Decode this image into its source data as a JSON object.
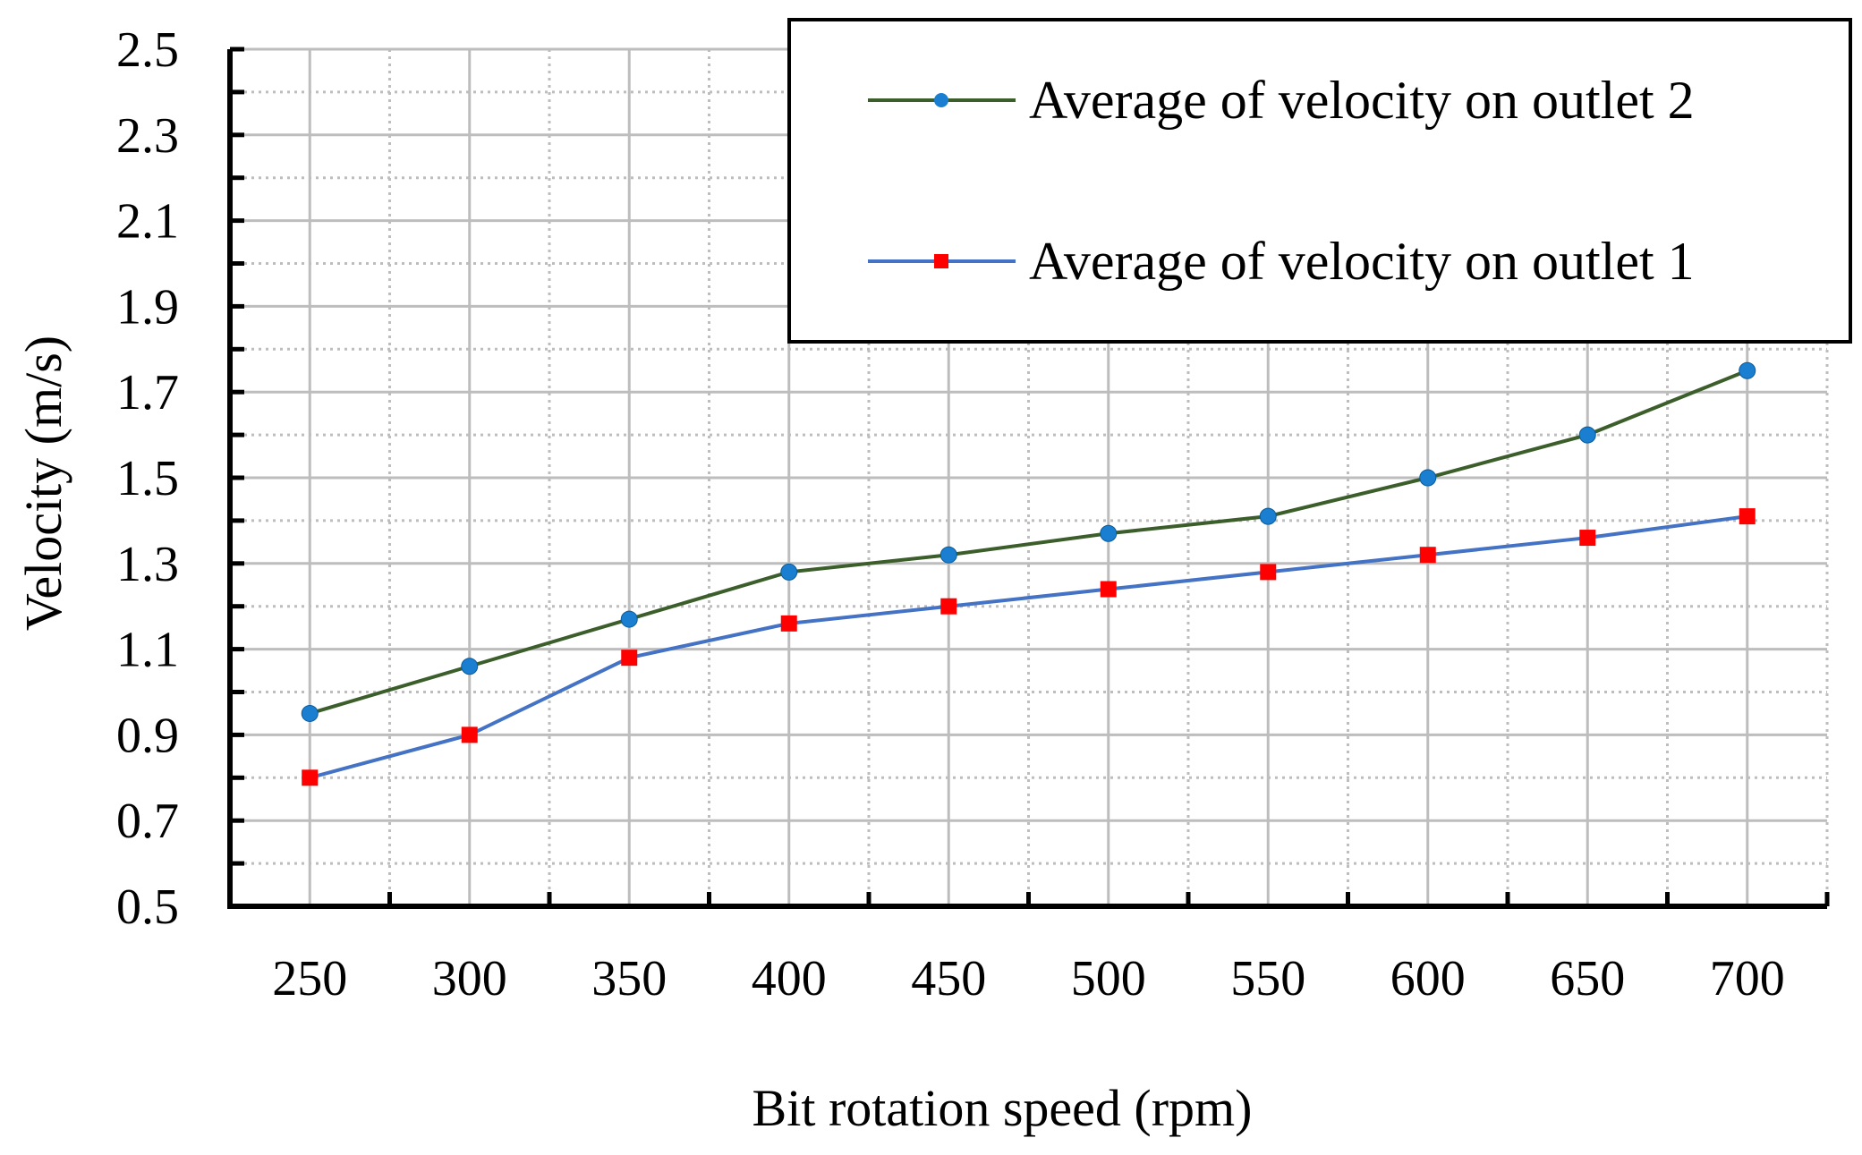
{
  "chart_data": {
    "type": "line",
    "title": "",
    "xlabel": "Bit rotation speed (rpm)",
    "ylabel": "Velocity (m/s)",
    "categories": [
      "250",
      "300",
      "350",
      "400",
      "450",
      "500",
      "550",
      "600",
      "650",
      "700"
    ],
    "x": [
      250,
      300,
      350,
      400,
      450,
      500,
      550,
      600,
      650,
      700
    ],
    "ylim": [
      0.5,
      2.5
    ],
    "yticks": [
      "0.5",
      "0.7",
      "0.9",
      "1.1",
      "1.3",
      "1.5",
      "1.7",
      "1.9",
      "2.1",
      "2.3",
      "2.5"
    ],
    "grid": true,
    "legend_position": "top-right",
    "series": [
      {
        "name": "Average of velocity on outlet 2",
        "color": "#3b5e2b",
        "marker": "circle",
        "marker_color": "#1a7fd0",
        "values": [
          0.95,
          1.06,
          1.17,
          1.28,
          1.32,
          1.37,
          1.41,
          1.5,
          1.6,
          1.75
        ]
      },
      {
        "name": "Average of velocity on outlet 1",
        "color": "#4472c4",
        "marker": "square",
        "marker_color": "#ff0000",
        "values": [
          0.8,
          0.9,
          1.08,
          1.16,
          1.2,
          1.24,
          1.28,
          1.32,
          1.36,
          1.41
        ]
      }
    ]
  }
}
